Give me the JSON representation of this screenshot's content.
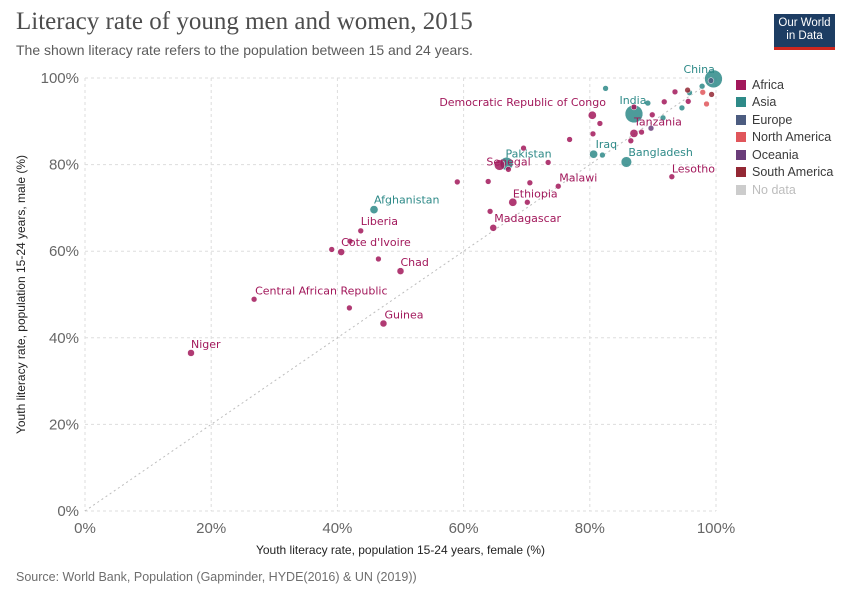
{
  "header": {
    "title": "Literacy rate of young men and women, 2015",
    "subtitle": "The shown literacy rate refers to the population between 15 and 24 years.",
    "logo_line1": "Our World",
    "logo_line2": "in Data"
  },
  "footer": {
    "source": "Source: World Bank, Population (Gapminder, HYDE(2016) & UN (2019))"
  },
  "legend": [
    {
      "name": "Africa",
      "color": "#a2185b"
    },
    {
      "name": "Asia",
      "color": "#2e8a88"
    },
    {
      "name": "Europe",
      "color": "#4c5c80"
    },
    {
      "name": "North America",
      "color": "#e0565b"
    },
    {
      "name": "Oceania",
      "color": "#6b3d7a"
    },
    {
      "name": "South America",
      "color": "#932834"
    },
    {
      "name": "No data",
      "color": "#cccccc"
    }
  ],
  "chart_data": {
    "type": "scatter",
    "title": "Literacy rate of young men and women, 2015",
    "xlabel": "Youth literacy rate, population 15-24 years, female (%)",
    "ylabel": "Youth literacy rate, population 15-24 years, male (%)",
    "xlim": [
      0,
      100
    ],
    "ylim": [
      0,
      100
    ],
    "xticks": [
      "0%",
      "20%",
      "40%",
      "60%",
      "80%",
      "100%"
    ],
    "yticks": [
      "0%",
      "20%",
      "40%",
      "60%",
      "80%",
      "100%"
    ],
    "grid": true,
    "legend_position": "right",
    "reference_line": "x = y",
    "points": [
      {
        "label": "China",
        "continent": "Asia",
        "x": 99.6,
        "y": 99.8,
        "size": 7
      },
      {
        "label": "India",
        "continent": "Asia",
        "x": 87.0,
        "y": 91.7,
        "size": 7
      },
      {
        "label": "Democratic Republic of Congo",
        "continent": "Africa",
        "x": 80.4,
        "y": 91.4,
        "size": 3
      },
      {
        "label": "Tanzania",
        "continent": "Africa",
        "x": 87.0,
        "y": 87.2,
        "size": 3
      },
      {
        "label": "Iraq",
        "continent": "Asia",
        "x": 80.6,
        "y": 82.4,
        "size": 3
      },
      {
        "label": "Bangladesh",
        "continent": "Asia",
        "x": 85.8,
        "y": 80.6,
        "size": 4
      },
      {
        "label": "Lesotho",
        "continent": "Africa",
        "x": 93.0,
        "y": 77.2,
        "size": 2
      },
      {
        "label": "Pakistan",
        "continent": "Asia",
        "x": 66.8,
        "y": 80.2,
        "size": 5
      },
      {
        "label": "Senegal",
        "continent": "Africa",
        "x": 67.1,
        "y": 78.9,
        "size": 2
      },
      {
        "label": "Malawi",
        "continent": "Africa",
        "x": 75.0,
        "y": 75.0,
        "size": 2
      },
      {
        "label": "Ethiopia",
        "continent": "Africa",
        "x": 67.8,
        "y": 71.3,
        "size": 3
      },
      {
        "label": "Afghanistan",
        "continent": "Asia",
        "x": 45.8,
        "y": 69.6,
        "size": 3
      },
      {
        "label": "Madagascar",
        "continent": "Africa",
        "x": 64.7,
        "y": 65.4,
        "size": 2.5
      },
      {
        "label": "Liberia",
        "continent": "Africa",
        "x": 43.7,
        "y": 64.7,
        "size": 2
      },
      {
        "label": "Cote d'Ivoire",
        "continent": "Africa",
        "x": 40.6,
        "y": 59.8,
        "size": 2.5
      },
      {
        "label": "Chad",
        "continent": "Africa",
        "x": 50.0,
        "y": 55.4,
        "size": 2.5
      },
      {
        "label": "Central African Republic",
        "continent": "Africa",
        "x": 26.8,
        "y": 48.9,
        "size": 2
      },
      {
        "label": "Guinea",
        "continent": "Africa",
        "x": 47.3,
        "y": 43.3,
        "size": 2.5
      },
      {
        "label": "Niger",
        "continent": "Africa",
        "x": 16.8,
        "y": 36.5,
        "size": 2.5
      },
      {
        "label": "",
        "continent": "Africa",
        "x": 65.7,
        "y": 79.9,
        "size": 4
      },
      {
        "label": "",
        "continent": "Africa",
        "x": 69.5,
        "y": 83.8,
        "size": 2
      },
      {
        "label": "",
        "continent": "Africa",
        "x": 76.8,
        "y": 85.8,
        "size": 2
      },
      {
        "label": "",
        "continent": "Africa",
        "x": 59.0,
        "y": 76.0,
        "size": 2
      },
      {
        "label": "",
        "continent": "Africa",
        "x": 63.9,
        "y": 76.1,
        "size": 2
      },
      {
        "label": "",
        "continent": "Africa",
        "x": 70.5,
        "y": 75.8,
        "size": 2
      },
      {
        "label": "",
        "continent": "Africa",
        "x": 70.1,
        "y": 71.3,
        "size": 2
      },
      {
        "label": "",
        "continent": "Africa",
        "x": 64.2,
        "y": 69.2,
        "size": 2
      },
      {
        "label": "",
        "continent": "Africa",
        "x": 73.4,
        "y": 80.5,
        "size": 2
      },
      {
        "label": "",
        "continent": "Africa",
        "x": 39.1,
        "y": 60.4,
        "size": 2
      },
      {
        "label": "",
        "continent": "Africa",
        "x": 42.0,
        "y": 62.3,
        "size": 2
      },
      {
        "label": "",
        "continent": "Africa",
        "x": 46.5,
        "y": 58.2,
        "size": 2
      },
      {
        "label": "",
        "continent": "Africa",
        "x": 41.9,
        "y": 46.9,
        "size": 2
      },
      {
        "label": "",
        "continent": "Africa",
        "x": 80.5,
        "y": 87.1,
        "size": 2
      },
      {
        "label": "",
        "continent": "Africa",
        "x": 81.6,
        "y": 89.5,
        "size": 2
      },
      {
        "label": "",
        "continent": "Africa",
        "x": 86.5,
        "y": 85.5,
        "size": 2
      },
      {
        "label": "",
        "continent": "Africa",
        "x": 88.2,
        "y": 87.5,
        "size": 2
      },
      {
        "label": "",
        "continent": "Africa",
        "x": 89.9,
        "y": 91.5,
        "size": 2
      },
      {
        "label": "",
        "continent": "Africa",
        "x": 91.8,
        "y": 94.5,
        "size": 2
      },
      {
        "label": "",
        "continent": "Africa",
        "x": 93.5,
        "y": 96.8,
        "size": 2
      },
      {
        "label": "",
        "continent": "Africa",
        "x": 95.6,
        "y": 94.6,
        "size": 2
      },
      {
        "label": "",
        "continent": "Africa",
        "x": 87.0,
        "y": 93.3,
        "size": 2
      },
      {
        "label": "",
        "continent": "Asia",
        "x": 82.5,
        "y": 97.6,
        "size": 2
      },
      {
        "label": "",
        "continent": "Asia",
        "x": 82.0,
        "y": 82.2,
        "size": 2
      },
      {
        "label": "",
        "continent": "Asia",
        "x": 89.2,
        "y": 94.2,
        "size": 2
      },
      {
        "label": "",
        "continent": "Asia",
        "x": 91.6,
        "y": 90.8,
        "size": 2
      },
      {
        "label": "",
        "continent": "Asia",
        "x": 95.8,
        "y": 96.6,
        "size": 2
      },
      {
        "label": "",
        "continent": "Asia",
        "x": 97.8,
        "y": 98.1,
        "size": 2
      },
      {
        "label": "",
        "continent": "Asia",
        "x": 94.6,
        "y": 93.1,
        "size": 2
      },
      {
        "label": "",
        "continent": "Europe",
        "x": 99.2,
        "y": 99.4,
        "size": 2
      },
      {
        "label": "",
        "continent": "North America",
        "x": 98.5,
        "y": 94.0,
        "size": 2
      },
      {
        "label": "",
        "continent": "North America",
        "x": 97.9,
        "y": 96.7,
        "size": 2
      },
      {
        "label": "",
        "continent": "Oceania",
        "x": 89.7,
        "y": 88.4,
        "size": 2
      },
      {
        "label": "",
        "continent": "South America",
        "x": 99.3,
        "y": 96.2,
        "size": 2
      },
      {
        "label": "",
        "continent": "South America",
        "x": 95.5,
        "y": 97.2,
        "size": 2
      }
    ]
  }
}
